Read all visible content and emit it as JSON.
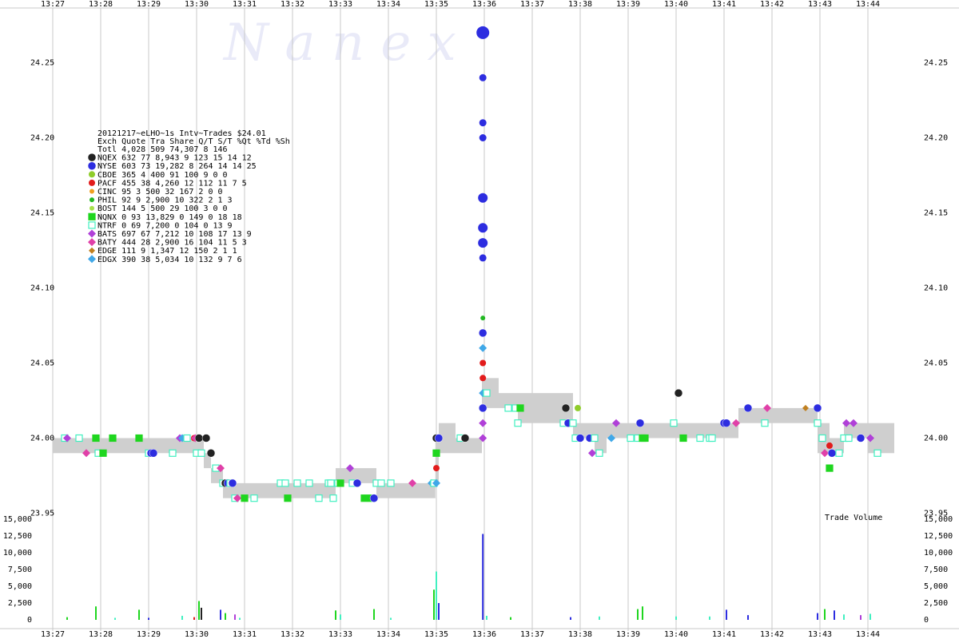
{
  "watermark": "N a n e x",
  "chart_data": {
    "type": "scatter",
    "x_ticks": [
      "13:27",
      "13:28",
      "13:29",
      "13:30",
      "13:31",
      "13:32",
      "13:33",
      "13:34",
      "13:35",
      "13:36",
      "13:37",
      "13:38",
      "13:39",
      "13:40",
      "13:41",
      "13:42",
      "13:43",
      "13:44"
    ],
    "price_axis": {
      "ylim": [
        23.95,
        24.28
      ],
      "ticks": [
        "23.95",
        "24.00",
        "24.05",
        "24.10",
        "24.15",
        "24.20",
        "24.25"
      ]
    },
    "volume_axis": {
      "label": "Trade Volume",
      "ylim": [
        0,
        15000
      ],
      "ticks": [
        "0",
        "2,500",
        "5,000",
        "7,500",
        "10,000",
        "12,500",
        "15,000"
      ]
    },
    "stats_title": "20121217~eLHO~1s Intv~Trades $24.01",
    "stats_header": "Exch Quote  Tra  Share  Q/T   S/T  %Qt  %Td  %Sh",
    "stats_rows": [
      {
        "exch": "Totl",
        "line": "Totl 4,028  509 74,307    8   146",
        "color": "#ffffff",
        "shape": "none"
      },
      {
        "exch": "NQEX",
        "line": "NQEX   632   77  8,943    9   123   15   14   12",
        "color": "#222222",
        "shape": "big-circle"
      },
      {
        "exch": "NYSE",
        "line": "NYSE   603   73 19,282    8   264   14   14   25",
        "color": "#2d2de0",
        "shape": "big-circle"
      },
      {
        "exch": "CBOE",
        "line": "CBOE   365    4    400   91   100    9    0    0",
        "color": "#8fcc2a",
        "shape": "circle"
      },
      {
        "exch": "PACF",
        "line": "PACF   455   38  4,260   12   112   11    7    5",
        "color": "#e21b1b",
        "shape": "circle"
      },
      {
        "exch": "CINC",
        "line": "CINC    95    3    500   32   167    2    0    0",
        "color": "#f0a020",
        "shape": "small-circle"
      },
      {
        "exch": "PHIL",
        "line": "PHIL    92    9  2,900   10   322    2    1    3",
        "color": "#22b822",
        "shape": "small-circle"
      },
      {
        "exch": "BOST",
        "line": "BOST   144    5    500   29   100    3    0    0",
        "color": "#a6e24a",
        "shape": "small-circle"
      },
      {
        "exch": "NQNX",
        "line": "NQNX     0   93 13,829    0   149    0   18   18",
        "color": "#1fd61f",
        "shape": "square"
      },
      {
        "exch": "NTRF",
        "line": "NTRF     0   69  7,200    0   104    0   13    9",
        "color": "#40f0c0",
        "shape": "square"
      },
      {
        "exch": "BATS",
        "line": "BATS   697   67  7,212   10   108   17   13    9",
        "color": "#b040d8",
        "shape": "diamond"
      },
      {
        "exch": "BATY",
        "line": "BATY   444   28  2,900   16   104   11    5    3",
        "color": "#e040a8",
        "shape": "diamond"
      },
      {
        "exch": "EDGE",
        "line": "EDGE   111    9  1,347   12   150    2    1    1",
        "color": "#c08020",
        "shape": "small-diamond"
      },
      {
        "exch": "EDGX",
        "line": "EDGX   390   38  5,034   10   132    9    7    6",
        "color": "#40a8e8",
        "shape": "diamond"
      }
    ],
    "nbbo_band": [
      {
        "x0": 27.0,
        "x1": 27.95,
        "lo": 23.99,
        "hi": 24.0
      },
      {
        "x0": 27.95,
        "x1": 28.95,
        "lo": 23.99,
        "hi": 24.0
      },
      {
        "x0": 28.95,
        "x1": 29.8,
        "lo": 23.99,
        "hi": 24.0
      },
      {
        "x0": 29.8,
        "x1": 30.15,
        "lo": 23.99,
        "hi": 24.0
      },
      {
        "x0": 30.15,
        "x1": 30.3,
        "lo": 23.98,
        "hi": 23.99
      },
      {
        "x0": 30.3,
        "x1": 30.55,
        "lo": 23.97,
        "hi": 23.98
      },
      {
        "x0": 30.55,
        "x1": 31.05,
        "lo": 23.96,
        "hi": 23.97
      },
      {
        "x0": 31.05,
        "x1": 32.4,
        "lo": 23.96,
        "hi": 23.97
      },
      {
        "x0": 32.4,
        "x1": 32.9,
        "lo": 23.96,
        "hi": 23.97
      },
      {
        "x0": 32.9,
        "x1": 33.75,
        "lo": 23.97,
        "hi": 23.98
      },
      {
        "x0": 33.75,
        "x1": 34.05,
        "lo": 23.96,
        "hi": 23.97
      },
      {
        "x0": 34.05,
        "x1": 34.98,
        "lo": 23.96,
        "hi": 23.97
      },
      {
        "x0": 34.98,
        "x1": 35.05,
        "lo": 23.97,
        "hi": 24.0
      },
      {
        "x0": 35.05,
        "x1": 35.4,
        "lo": 23.99,
        "hi": 24.01
      },
      {
        "x0": 35.4,
        "x1": 35.95,
        "lo": 23.99,
        "hi": 24.0
      },
      {
        "x0": 35.95,
        "x1": 36.3,
        "lo": 24.02,
        "hi": 24.04
      },
      {
        "x0": 36.3,
        "x1": 36.7,
        "lo": 24.02,
        "hi": 24.03
      },
      {
        "x0": 36.7,
        "x1": 37.85,
        "lo": 24.01,
        "hi": 24.03
      },
      {
        "x0": 37.85,
        "x1": 38.3,
        "lo": 24.0,
        "hi": 24.01
      },
      {
        "x0": 38.3,
        "x1": 38.55,
        "lo": 23.99,
        "hi": 24.01
      },
      {
        "x0": 38.55,
        "x1": 39.0,
        "lo": 24.0,
        "hi": 24.01
      },
      {
        "x0": 39.0,
        "x1": 41.3,
        "lo": 24.0,
        "hi": 24.01
      },
      {
        "x0": 41.3,
        "x1": 42.1,
        "lo": 24.01,
        "hi": 24.02
      },
      {
        "x0": 42.1,
        "x1": 42.95,
        "lo": 24.01,
        "hi": 24.02
      },
      {
        "x0": 42.95,
        "x1": 43.2,
        "lo": 23.99,
        "hi": 24.01
      },
      {
        "x0": 43.2,
        "x1": 43.5,
        "lo": 23.99,
        "hi": 24.0
      },
      {
        "x0": 43.5,
        "x1": 44.0,
        "lo": 24.0,
        "hi": 24.01
      },
      {
        "x0": 44.0,
        "x1": 44.55,
        "lo": 23.99,
        "hi": 24.01
      }
    ],
    "trades": [
      {
        "ex": "NTRF",
        "x": 27.25,
        "y": 24.0
      },
      {
        "ex": "BATS",
        "x": 27.3,
        "y": 24.0
      },
      {
        "ex": "NTRF",
        "x": 27.55,
        "y": 24.0
      },
      {
        "ex": "BATY",
        "x": 27.7,
        "y": 23.99
      },
      {
        "ex": "NQNX",
        "x": 27.9,
        "y": 24.0
      },
      {
        "ex": "NTRF",
        "x": 27.95,
        "y": 23.99
      },
      {
        "ex": "NQNX",
        "x": 28.05,
        "y": 23.99
      },
      {
        "ex": "NQNX",
        "x": 28.25,
        "y": 24.0
      },
      {
        "ex": "NQNX",
        "x": 28.8,
        "y": 24.0
      },
      {
        "ex": "NTRF",
        "x": 29.0,
        "y": 23.99
      },
      {
        "ex": "NYSE",
        "x": 29.05,
        "y": 23.99
      },
      {
        "ex": "NYSE",
        "x": 29.1,
        "y": 23.99
      },
      {
        "ex": "NTRF",
        "x": 29.5,
        "y": 23.99
      },
      {
        "ex": "BATS",
        "x": 29.65,
        "y": 24.0
      },
      {
        "ex": "EDGX",
        "x": 29.7,
        "y": 24.0
      },
      {
        "ex": "NTRF",
        "x": 29.8,
        "y": 24.0
      },
      {
        "ex": "PACF",
        "x": 29.95,
        "y": 24.0
      },
      {
        "ex": "BATY",
        "x": 29.97,
        "y": 24.0
      },
      {
        "ex": "NQEX",
        "x": 30.05,
        "y": 24.0
      },
      {
        "ex": "NQEX",
        "x": 30.2,
        "y": 24.0
      },
      {
        "ex": "NTRF",
        "x": 30.0,
        "y": 23.99
      },
      {
        "ex": "NTRF",
        "x": 30.1,
        "y": 23.99
      },
      {
        "ex": "NQEX",
        "x": 30.3,
        "y": 23.99
      },
      {
        "ex": "NTRF",
        "x": 30.4,
        "y": 23.98
      },
      {
        "ex": "BATY",
        "x": 30.5,
        "y": 23.98
      },
      {
        "ex": "NTRF",
        "x": 30.55,
        "y": 23.97
      },
      {
        "ex": "NQEX",
        "x": 30.6,
        "y": 23.97
      },
      {
        "ex": "NYSE",
        "x": 30.65,
        "y": 23.97
      },
      {
        "ex": "NTRF",
        "x": 30.7,
        "y": 23.97
      },
      {
        "ex": "NYSE",
        "x": 30.75,
        "y": 23.97
      },
      {
        "ex": "NTRF",
        "x": 30.8,
        "y": 23.96
      },
      {
        "ex": "BATY",
        "x": 30.85,
        "y": 23.96
      },
      {
        "ex": "NQNX",
        "x": 31.0,
        "y": 23.96
      },
      {
        "ex": "NTRF",
        "x": 31.2,
        "y": 23.96
      },
      {
        "ex": "NTRF",
        "x": 31.75,
        "y": 23.97
      },
      {
        "ex": "NTRF",
        "x": 31.85,
        "y": 23.97
      },
      {
        "ex": "NQNX",
        "x": 31.9,
        "y": 23.96
      },
      {
        "ex": "NTRF",
        "x": 32.1,
        "y": 23.97
      },
      {
        "ex": "NTRF",
        "x": 32.35,
        "y": 23.97
      },
      {
        "ex": "NTRF",
        "x": 32.55,
        "y": 23.96
      },
      {
        "ex": "NTRF",
        "x": 32.75,
        "y": 23.97
      },
      {
        "ex": "NTRF",
        "x": 32.8,
        "y": 23.97
      },
      {
        "ex": "NTRF",
        "x": 32.85,
        "y": 23.96
      },
      {
        "ex": "NTRF",
        "x": 32.95,
        "y": 23.97
      },
      {
        "ex": "NQNX",
        "x": 33.0,
        "y": 23.97
      },
      {
        "ex": "BATS",
        "x": 33.2,
        "y": 23.98
      },
      {
        "ex": "NTRF",
        "x": 33.25,
        "y": 23.97
      },
      {
        "ex": "NYSE",
        "x": 33.35,
        "y": 23.97
      },
      {
        "ex": "NQNX",
        "x": 33.5,
        "y": 23.96
      },
      {
        "ex": "NQNX",
        "x": 33.65,
        "y": 23.96
      },
      {
        "ex": "NYSE",
        "x": 33.7,
        "y": 23.96
      },
      {
        "ex": "NTRF",
        "x": 33.75,
        "y": 23.97
      },
      {
        "ex": "NTRF",
        "x": 33.85,
        "y": 23.97
      },
      {
        "ex": "NTRF",
        "x": 34.05,
        "y": 23.97
      },
      {
        "ex": "BATY",
        "x": 34.5,
        "y": 23.97
      },
      {
        "ex": "EDGX",
        "x": 34.9,
        "y": 23.97
      },
      {
        "ex": "NTRF",
        "x": 34.95,
        "y": 23.97
      },
      {
        "ex": "EDGX",
        "x": 35.0,
        "y": 23.97
      },
      {
        "ex": "PACF",
        "x": 35.0,
        "y": 23.98
      },
      {
        "ex": "NQNX",
        "x": 35.0,
        "y": 23.99
      },
      {
        "ex": "NQEX",
        "x": 35.0,
        "y": 24.0
      },
      {
        "ex": "NYSE",
        "x": 35.05,
        "y": 24.0
      },
      {
        "ex": "NTRF",
        "x": 35.5,
        "y": 24.0
      },
      {
        "ex": "NQEX",
        "x": 35.6,
        "y": 24.0
      },
      {
        "ex": "BATS",
        "x": 35.97,
        "y": 24.0
      },
      {
        "ex": "BATS",
        "x": 35.97,
        "y": 24.01
      },
      {
        "ex": "NYSE",
        "x": 35.97,
        "y": 24.02
      },
      {
        "ex": "EDGX",
        "x": 35.97,
        "y": 24.03
      },
      {
        "ex": "PACF",
        "x": 35.97,
        "y": 24.04
      },
      {
        "ex": "PACF",
        "x": 35.97,
        "y": 24.05
      },
      {
        "ex": "EDGX",
        "x": 35.97,
        "y": 24.06
      },
      {
        "ex": "NYSE",
        "x": 35.97,
        "y": 24.07
      },
      {
        "ex": "PHIL",
        "x": 35.97,
        "y": 24.08
      },
      {
        "ex": "NYSE",
        "x": 35.97,
        "y": 24.12
      },
      {
        "ex": "NYSE",
        "x": 35.97,
        "y": 24.13
      },
      {
        "ex": "NYSE",
        "x": 35.97,
        "y": 24.14
      },
      {
        "ex": "NYSE",
        "x": 35.97,
        "y": 24.16
      },
      {
        "ex": "NYSE",
        "x": 35.97,
        "y": 24.2
      },
      {
        "ex": "NYSE",
        "x": 35.97,
        "y": 24.21
      },
      {
        "ex": "NYSE",
        "x": 35.97,
        "y": 24.24
      },
      {
        "ex": "NYSE",
        "x": 35.97,
        "y": 24.27
      },
      {
        "ex": "NTRF",
        "x": 36.05,
        "y": 24.03
      },
      {
        "ex": "NTRF",
        "x": 36.5,
        "y": 24.02
      },
      {
        "ex": "NTRF",
        "x": 36.65,
        "y": 24.02
      },
      {
        "ex": "NQNX",
        "x": 36.75,
        "y": 24.02
      },
      {
        "ex": "NTRF",
        "x": 36.7,
        "y": 24.01
      },
      {
        "ex": "NTRF",
        "x": 37.65,
        "y": 24.01
      },
      {
        "ex": "NQEX",
        "x": 37.7,
        "y": 24.02
      },
      {
        "ex": "NYSE",
        "x": 37.75,
        "y": 24.01
      },
      {
        "ex": "NTRF",
        "x": 37.85,
        "y": 24.01
      },
      {
        "ex": "CBOE",
        "x": 37.95,
        "y": 24.02
      },
      {
        "ex": "NTRF",
        "x": 37.9,
        "y": 24.0
      },
      {
        "ex": "NYSE",
        "x": 38.0,
        "y": 24.0
      },
      {
        "ex": "NYSE",
        "x": 38.2,
        "y": 24.0
      },
      {
        "ex": "NTRF",
        "x": 38.3,
        "y": 24.0
      },
      {
        "ex": "BATS",
        "x": 38.25,
        "y": 23.99
      },
      {
        "ex": "NTRF",
        "x": 38.4,
        "y": 23.99
      },
      {
        "ex": "EDGX",
        "x": 38.65,
        "y": 24.0
      },
      {
        "ex": "BATS",
        "x": 38.75,
        "y": 24.01
      },
      {
        "ex": "NTRF",
        "x": 39.05,
        "y": 24.0
      },
      {
        "ex": "NTRF",
        "x": 39.2,
        "y": 24.0
      },
      {
        "ex": "NYSE",
        "x": 39.25,
        "y": 24.01
      },
      {
        "ex": "NQNX",
        "x": 39.3,
        "y": 24.0
      },
      {
        "ex": "NQNX",
        "x": 39.35,
        "y": 24.0
      },
      {
        "ex": "NQEX",
        "x": 40.05,
        "y": 24.03
      },
      {
        "ex": "NTRF",
        "x": 39.95,
        "y": 24.01
      },
      {
        "ex": "NQNX",
        "x": 40.15,
        "y": 24.0
      },
      {
        "ex": "NTRF",
        "x": 40.5,
        "y": 24.0
      },
      {
        "ex": "NTRF",
        "x": 40.7,
        "y": 24.0
      },
      {
        "ex": "NTRF",
        "x": 40.75,
        "y": 24.0
      },
      {
        "ex": "NYSE",
        "x": 41.0,
        "y": 24.01
      },
      {
        "ex": "NYSE",
        "x": 41.05,
        "y": 24.01
      },
      {
        "ex": "BATY",
        "x": 41.25,
        "y": 24.01
      },
      {
        "ex": "NYSE",
        "x": 41.5,
        "y": 24.02
      },
      {
        "ex": "NTRF",
        "x": 41.85,
        "y": 24.01
      },
      {
        "ex": "BATY",
        "x": 41.9,
        "y": 24.02
      },
      {
        "ex": "EDGE",
        "x": 42.7,
        "y": 24.02
      },
      {
        "ex": "NYSE",
        "x": 42.95,
        "y": 24.02
      },
      {
        "ex": "NTRF",
        "x": 42.95,
        "y": 24.01
      },
      {
        "ex": "NTRF",
        "x": 43.05,
        "y": 24.0
      },
      {
        "ex": "BATY",
        "x": 43.1,
        "y": 23.99
      },
      {
        "ex": "PACF",
        "x": 43.2,
        "y": 23.995
      },
      {
        "ex": "NQNX",
        "x": 43.2,
        "y": 23.98
      },
      {
        "ex": "NYSE",
        "x": 43.25,
        "y": 23.99
      },
      {
        "ex": "NTRF",
        "x": 43.4,
        "y": 23.99
      },
      {
        "ex": "NTRF",
        "x": 43.5,
        "y": 24.0
      },
      {
        "ex": "BATS",
        "x": 43.55,
        "y": 24.01
      },
      {
        "ex": "NTRF",
        "x": 43.6,
        "y": 24.0
      },
      {
        "ex": "BATS",
        "x": 43.7,
        "y": 24.01
      },
      {
        "ex": "NYSE",
        "x": 43.85,
        "y": 24.0
      },
      {
        "ex": "BATS",
        "x": 44.05,
        "y": 24.0
      },
      {
        "ex": "NTRF",
        "x": 44.2,
        "y": 23.99
      }
    ],
    "volume_bars": [
      {
        "x": 27.3,
        "v": 400,
        "ex": "NQNX"
      },
      {
        "x": 27.9,
        "v": 2000,
        "ex": "NQNX"
      },
      {
        "x": 28.3,
        "v": 300,
        "ex": "NTRF"
      },
      {
        "x": 28.8,
        "v": 1500,
        "ex": "NQNX"
      },
      {
        "x": 29.0,
        "v": 300,
        "ex": "NYSE"
      },
      {
        "x": 29.7,
        "v": 600,
        "ex": "NTRF"
      },
      {
        "x": 29.95,
        "v": 400,
        "ex": "PACF"
      },
      {
        "x": 30.05,
        "v": 2800,
        "ex": "NQNX"
      },
      {
        "x": 30.1,
        "v": 1800,
        "ex": "NQEX"
      },
      {
        "x": 30.5,
        "v": 1500,
        "ex": "NYSE"
      },
      {
        "x": 30.6,
        "v": 1000,
        "ex": "NQNX"
      },
      {
        "x": 30.8,
        "v": 800,
        "ex": "BATS"
      },
      {
        "x": 30.9,
        "v": 300,
        "ex": "NTRF"
      },
      {
        "x": 32.9,
        "v": 1400,
        "ex": "NQNX"
      },
      {
        "x": 33.0,
        "v": 800,
        "ex": "NTRF"
      },
      {
        "x": 33.7,
        "v": 1600,
        "ex": "NQNX"
      },
      {
        "x": 34.05,
        "v": 300,
        "ex": "NTRF"
      },
      {
        "x": 34.95,
        "v": 4500,
        "ex": "NQNX"
      },
      {
        "x": 35.0,
        "v": 7200,
        "ex": "NTRF"
      },
      {
        "x": 35.05,
        "v": 2500,
        "ex": "NYSE"
      },
      {
        "x": 35.97,
        "v": 12800,
        "ex": "NYSE"
      },
      {
        "x": 36.05,
        "v": 600,
        "ex": "NTRF"
      },
      {
        "x": 36.55,
        "v": 400,
        "ex": "NQNX"
      },
      {
        "x": 37.8,
        "v": 400,
        "ex": "NYSE"
      },
      {
        "x": 38.4,
        "v": 500,
        "ex": "NTRF"
      },
      {
        "x": 39.2,
        "v": 1600,
        "ex": "NQNX"
      },
      {
        "x": 39.3,
        "v": 2000,
        "ex": "NQNX"
      },
      {
        "x": 40.0,
        "v": 500,
        "ex": "NTRF"
      },
      {
        "x": 40.7,
        "v": 500,
        "ex": "NTRF"
      },
      {
        "x": 41.05,
        "v": 1500,
        "ex": "NYSE"
      },
      {
        "x": 41.5,
        "v": 700,
        "ex": "NYSE"
      },
      {
        "x": 42.95,
        "v": 1000,
        "ex": "NYSE"
      },
      {
        "x": 43.1,
        "v": 1600,
        "ex": "NQNX"
      },
      {
        "x": 43.3,
        "v": 1400,
        "ex": "NYSE"
      },
      {
        "x": 43.5,
        "v": 800,
        "ex": "NTRF"
      },
      {
        "x": 43.85,
        "v": 700,
        "ex": "BATS"
      },
      {
        "x": 44.05,
        "v": 900,
        "ex": "NTRF"
      }
    ]
  }
}
